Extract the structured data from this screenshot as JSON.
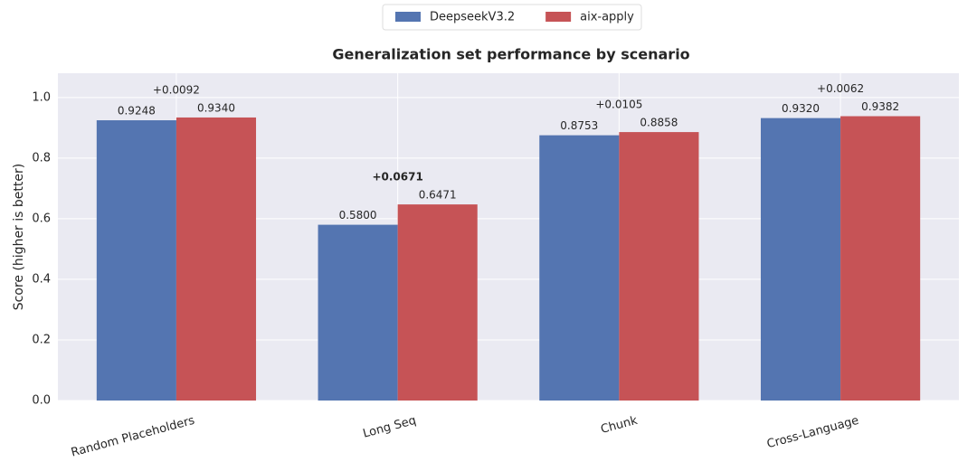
{
  "chart_data": {
    "type": "bar",
    "title": "Generalization set performance by scenario",
    "ylabel": "Score (higher is better)",
    "categories": [
      "Random Placeholders",
      "Long Seq",
      "Chunk",
      "Cross-Language"
    ],
    "series": [
      {
        "name": "DeepseekV3.2",
        "color": "#5475b1",
        "values": [
          0.9248,
          0.58,
          0.8753,
          0.932
        ],
        "value_labels": [
          "0.9248",
          "0.5800",
          "0.8753",
          "0.9320"
        ]
      },
      {
        "name": "aix-apply",
        "color": "#c65356",
        "values": [
          0.934,
          0.6471,
          0.8858,
          0.9382
        ],
        "value_labels": [
          "0.9340",
          "0.6471",
          "0.8858",
          "0.9382"
        ]
      }
    ],
    "annotations": [
      {
        "text": "+0.0092",
        "bold": false
      },
      {
        "text": "+0.0671",
        "bold": true
      },
      {
        "text": "+0.0105",
        "bold": false
      },
      {
        "text": "+0.0062",
        "bold": false
      }
    ],
    "ylim": [
      0,
      1.08
    ],
    "yticks": [
      {
        "value": 0,
        "label": "0.0"
      },
      {
        "value": 0.2,
        "label": "0.2"
      },
      {
        "value": 0.4,
        "label": "0.4"
      },
      {
        "value": 0.6,
        "label": "0.6"
      },
      {
        "value": 0.8,
        "label": "0.8"
      },
      {
        "value": 1,
        "label": "1.0"
      }
    ],
    "grid": true,
    "legend": "top"
  }
}
